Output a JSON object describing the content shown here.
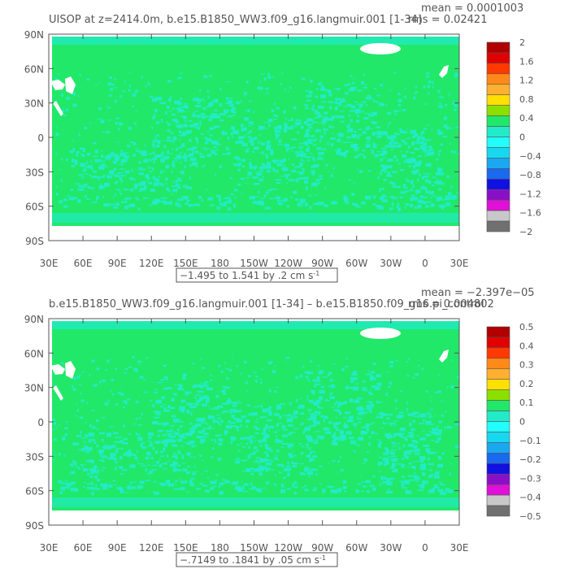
{
  "chart_data": [
    {
      "type": "heatmap",
      "title": "UISOP at z=2414.0m, b.e15.B1850_WW3.f09_g16.langmuir.001 [1-34]",
      "stats": {
        "mean": "mean = 0.0001003",
        "rms": "rms = 0.02421"
      },
      "xlabel": "",
      "ylabel": "",
      "x_ticks": [
        "30E",
        "60E",
        "90E",
        "120E",
        "150E",
        "180",
        "150W",
        "120W",
        "90W",
        "60W",
        "30W",
        "0",
        "30E"
      ],
      "y_ticks": [
        "90N",
        "60N",
        "30N",
        "0",
        "30S",
        "60S",
        "90S"
      ],
      "range_label": "−1.495 to 1.541 by .2 cm s",
      "range_unit_exp": "-1",
      "colorbar": {
        "labels": [
          "2",
          "1.6",
          "1.2",
          "0.8",
          "0.4",
          "0",
          "−0.4",
          "−0.8",
          "−1.2",
          "−1.6",
          "−2"
        ],
        "colors": [
          "#B00000",
          "#E00000",
          "#FF3A00",
          "#FF8A1A",
          "#FFB030",
          "#FFE000",
          "#8CE000",
          "#22E86A",
          "#22EBC8",
          "#22FFFF",
          "#18D8F0",
          "#1AA8F0",
          "#1A6AF0",
          "#1010E0",
          "#8A10C8",
          "#E010D8",
          "#C8C8C8",
          "#707070"
        ]
      }
    },
    {
      "type": "heatmap",
      "title": "b.e15.B1850_WW3.f09_g16.langmuir.001 [1-34] – b.e15.B1850.f09_g16.pi_control",
      "stats": {
        "mean": "mean = −2.397e−05",
        "rms": "rms = 0.004802"
      },
      "xlabel": "",
      "ylabel": "",
      "x_ticks": [
        "30E",
        "60E",
        "90E",
        "120E",
        "150E",
        "180",
        "150W",
        "120W",
        "90W",
        "60W",
        "30W",
        "0",
        "30E"
      ],
      "y_ticks": [
        "90N",
        "60N",
        "30N",
        "0",
        "30S",
        "60S",
        "90S"
      ],
      "range_label": "−.7149 to .1841 by .05 cm s",
      "range_unit_exp": "-1",
      "colorbar": {
        "labels": [
          "0.5",
          "0.4",
          "0.3",
          "0.2",
          "0.1",
          "0",
          "−0.1",
          "−0.2",
          "−0.3",
          "−0.4",
          "−0.5"
        ],
        "colors": [
          "#B00000",
          "#E00000",
          "#FF3A00",
          "#FF8A1A",
          "#FFB030",
          "#FFE000",
          "#8CE000",
          "#22E86A",
          "#22EBC8",
          "#22FFFF",
          "#18D8F0",
          "#1AA8F0",
          "#1A6AF0",
          "#1010E0",
          "#8A10C8",
          "#E010D8",
          "#C8C8C8",
          "#707070"
        ]
      }
    }
  ],
  "colors": {
    "field_main": "#22E86A",
    "field_alt": "#22EBC8",
    "land_ice": "#FFFFFF"
  }
}
